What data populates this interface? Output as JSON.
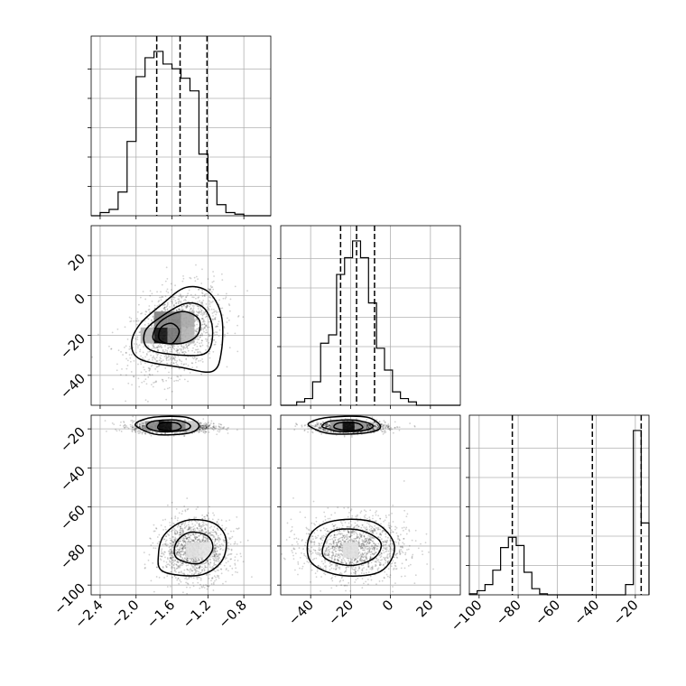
{
  "chart_data": {
    "type": "corner",
    "parameters": [
      {
        "range": [
          -2.5,
          -0.5
        ],
        "ticks": [
          -2.4,
          -2.0,
          -1.6,
          -1.2,
          -0.8
        ],
        "tick_labels": [
          "−2.4",
          "−2.0",
          "−1.6",
          "−1.2",
          "−0.8"
        ],
        "quantiles": [
          -1.77,
          -1.51,
          -1.21
        ],
        "histogram": {
          "bin_edges": [
            -2.5,
            -2.4,
            -2.3,
            -2.2,
            -2.1,
            -2.0,
            -1.9,
            -1.8,
            -1.7,
            -1.6,
            -1.5,
            -1.4,
            -1.3,
            -1.2,
            -1.1,
            -1.0,
            -0.9,
            -0.8,
            -0.7,
            -0.6,
            -0.5
          ],
          "counts": [
            0,
            0.02,
            0.04,
            0.15,
            0.47,
            0.88,
            1.0,
            1.04,
            0.96,
            0.93,
            0.87,
            0.79,
            0.39,
            0.22,
            0.07,
            0.02,
            0.01,
            0,
            0,
            0
          ]
        }
      },
      {
        "range": [
          -55,
          35
        ],
        "ticks": [
          -40,
          -20,
          0,
          20
        ],
        "tick_labels": [
          "−40",
          "−20",
          "0",
          "20"
        ],
        "quantiles": [
          -25,
          -17,
          -8
        ],
        "histogram": {
          "bin_edges": [
            -55,
            -51,
            -47,
            -43,
            -39,
            -35,
            -31,
            -27,
            -23,
            -19,
            -15,
            -11,
            -7,
            -3,
            1,
            5,
            9,
            13,
            17,
            21,
            25,
            29,
            35
          ],
          "counts": [
            0,
            0,
            0.02,
            0.04,
            0.14,
            0.37,
            0.42,
            0.78,
            0.88,
            0.98,
            0.88,
            0.61,
            0.34,
            0.21,
            0.08,
            0.04,
            0.02,
            0,
            0,
            0,
            0,
            0
          ]
        }
      },
      {
        "range": [
          -105,
          -13
        ],
        "ticks": [
          -100,
          -80,
          -60,
          -40,
          -20
        ],
        "tick_labels": [
          "−100",
          "−80",
          "−60",
          "−40",
          "−20"
        ],
        "quantiles": [
          -83,
          -42,
          -17
        ],
        "histogram": {
          "bin_edges": [
            -105,
            -101,
            -97,
            -93,
            -89,
            -85,
            -81,
            -77,
            -73,
            -69,
            -65,
            -61,
            -57,
            -53,
            -49,
            -45,
            -41,
            -37,
            -33,
            -29,
            -25,
            -21,
            -17,
            -13
          ],
          "counts": [
            0.005,
            0.02,
            0.05,
            0.12,
            0.23,
            0.28,
            0.24,
            0.11,
            0.03,
            0.005,
            0,
            0,
            0,
            0,
            0,
            0,
            0,
            0,
            0,
            0,
            0.05,
            0.8,
            0.35
          ]
        }
      }
    ],
    "pairs": [
      {
        "x": 0,
        "y": 1,
        "clusters": [
          {
            "center": [
              -1.55,
              -18
            ],
            "spread": [
              0.25,
              11
            ],
            "rho": 0.35
          }
        ],
        "density_cells": [
          {
            "x": [
              -1.8,
              -1.65
            ],
            "y": [
              -24,
              -16
            ],
            "level": 0.95
          },
          {
            "x": [
              -1.65,
              -1.5
            ],
            "y": [
              -24,
              -16
            ],
            "level": 0.55
          },
          {
            "x": [
              -1.8,
              -1.65
            ],
            "y": [
              -16,
              -8
            ],
            "level": 0.5
          },
          {
            "x": [
              -1.65,
              -1.5
            ],
            "y": [
              -16,
              -8
            ],
            "level": 0.5
          },
          {
            "x": [
              -1.5,
              -1.35
            ],
            "y": [
              -16,
              -8
            ],
            "level": 0.35
          },
          {
            "x": [
              -1.95,
              -1.8
            ],
            "y": [
              -24,
              -16
            ],
            "level": 0.3
          },
          {
            "x": [
              -1.5,
              -1.35
            ],
            "y": [
              -24,
              -16
            ],
            "level": 0.3
          }
        ],
        "contours": [
          [
            [
              -1.95,
              -32
            ],
            [
              -1.5,
              -36
            ],
            [
              -1.15,
              -38
            ],
            [
              -1.05,
              -28
            ],
            [
              -1.05,
              -10
            ],
            [
              -1.2,
              2
            ],
            [
              -1.45,
              4
            ],
            [
              -1.7,
              -4
            ],
            [
              -1.95,
              -14
            ],
            [
              -2.05,
              -24
            ]
          ],
          [
            [
              -1.85,
              -27
            ],
            [
              -1.45,
              -30
            ],
            [
              -1.2,
              -28
            ],
            [
              -1.15,
              -16
            ],
            [
              -1.25,
              -6
            ],
            [
              -1.45,
              -4
            ],
            [
              -1.7,
              -10
            ],
            [
              -1.9,
              -18
            ]
          ],
          [
            [
              -1.78,
              -23
            ],
            [
              -1.5,
              -24
            ],
            [
              -1.32,
              -20
            ],
            [
              -1.3,
              -12
            ],
            [
              -1.48,
              -8
            ],
            [
              -1.7,
              -12
            ],
            [
              -1.8,
              -18
            ]
          ],
          [
            [
              -1.74,
              -22
            ],
            [
              -1.6,
              -24
            ],
            [
              -1.52,
              -18
            ],
            [
              -1.6,
              -14
            ],
            [
              -1.72,
              -16
            ]
          ]
        ]
      },
      {
        "x": 0,
        "y": 2,
        "clusters": [
          {
            "center": [
              -1.6,
              -19
            ],
            "spread": [
              0.22,
              1.5
            ],
            "rho": 0
          },
          {
            "center": [
              -1.35,
              -82
            ],
            "spread": [
              0.2,
              8
            ],
            "rho": 0
          }
        ],
        "density_cells": [
          {
            "x": [
              -1.75,
              -1.6
            ],
            "y": [
              -21,
              -16
            ],
            "level": 0.95
          },
          {
            "x": [
              -1.9,
              -1.75
            ],
            "y": [
              -21,
              -16
            ],
            "level": 0.45
          },
          {
            "x": [
              -1.6,
              -1.45
            ],
            "y": [
              -21,
              -16
            ],
            "level": 0.45
          },
          {
            "x": [
              -1.45,
              -1.3
            ],
            "y": [
              -21,
              -16
            ],
            "level": 0.2
          },
          {
            "x": [
              -1.45,
              -1.3
            ],
            "y": [
              -86,
              -78
            ],
            "level": 0.12
          },
          {
            "x": [
              -1.3,
              -1.15
            ],
            "y": [
              -86,
              -78
            ],
            "level": 0.1
          }
        ],
        "contours": [
          [
            [
              -1.95,
              -20
            ],
            [
              -1.75,
              -23
            ],
            [
              -1.4,
              -22
            ],
            [
              -1.3,
              -18
            ],
            [
              -1.45,
              -14
            ],
            [
              -1.8,
              -14
            ],
            [
              -2.0,
              -17
            ]
          ],
          [
            [
              -1.85,
              -20
            ],
            [
              -1.7,
              -21.5
            ],
            [
              -1.45,
              -20.5
            ],
            [
              -1.4,
              -18
            ],
            [
              -1.55,
              -15.5
            ],
            [
              -1.8,
              -16
            ],
            [
              -1.88,
              -18
            ]
          ],
          [
            [
              -1.75,
              -20
            ],
            [
              -1.6,
              -21
            ],
            [
              -1.5,
              -19.5
            ],
            [
              -1.55,
              -17
            ],
            [
              -1.72,
              -17
            ]
          ],
          [
            [
              -1.7,
              -93
            ],
            [
              -1.3,
              -95
            ],
            [
              -1.05,
              -88
            ],
            [
              -1.0,
              -76
            ],
            [
              -1.15,
              -68
            ],
            [
              -1.45,
              -67
            ],
            [
              -1.68,
              -74
            ],
            [
              -1.75,
              -84
            ]
          ],
          [
            [
              -1.55,
              -86
            ],
            [
              -1.3,
              -89
            ],
            [
              -1.15,
              -82
            ],
            [
              -1.2,
              -75
            ],
            [
              -1.4,
              -73
            ],
            [
              -1.55,
              -78
            ]
          ]
        ]
      },
      {
        "x": 1,
        "y": 2,
        "clusters": [
          {
            "center": [
              -20,
              -19
            ],
            "spread": [
              9,
              1.5
            ],
            "rho": 0
          },
          {
            "center": [
              -18,
              -81
            ],
            "spread": [
              13,
              8
            ],
            "rho": 0
          }
        ],
        "density_cells": [
          {
            "x": [
              -24,
              -18
            ],
            "y": [
              -21,
              -16
            ],
            "level": 0.95
          },
          {
            "x": [
              -30,
              -24
            ],
            "y": [
              -21,
              -16
            ],
            "level": 0.4
          },
          {
            "x": [
              -18,
              -12
            ],
            "y": [
              -21,
              -16
            ],
            "level": 0.4
          },
          {
            "x": [
              -24,
              -16
            ],
            "y": [
              -86,
              -78
            ],
            "level": 0.12
          }
        ],
        "contours": [
          [
            [
              -40,
              -19
            ],
            [
              -30,
              -22.5
            ],
            [
              -12,
              -22
            ],
            [
              -5,
              -19
            ],
            [
              -12,
              -14
            ],
            [
              -30,
              -14
            ],
            [
              -40,
              -16.5
            ]
          ],
          [
            [
              -33,
              -19.5
            ],
            [
              -24,
              -21.5
            ],
            [
              -12,
              -20.5
            ],
            [
              -9,
              -18
            ],
            [
              -18,
              -15.5
            ],
            [
              -30,
              -16
            ],
            [
              -34,
              -18
            ]
          ],
          [
            [
              -28,
              -19.5
            ],
            [
              -20,
              -21
            ],
            [
              -14,
              -19.5
            ],
            [
              -17,
              -17
            ],
            [
              -26,
              -17
            ]
          ],
          [
            [
              -40,
              -88
            ],
            [
              -25,
              -95
            ],
            [
              -5,
              -93
            ],
            [
              2,
              -80
            ],
            [
              -8,
              -68
            ],
            [
              -28,
              -67
            ],
            [
              -40,
              -74
            ]
          ],
          [
            [
              -33,
              -86
            ],
            [
              -20,
              -90
            ],
            [
              -8,
              -86
            ],
            [
              -5,
              -78
            ],
            [
              -15,
              -72
            ],
            [
              -28,
              -72
            ],
            [
              -33,
              -78
            ]
          ]
        ]
      }
    ]
  }
}
